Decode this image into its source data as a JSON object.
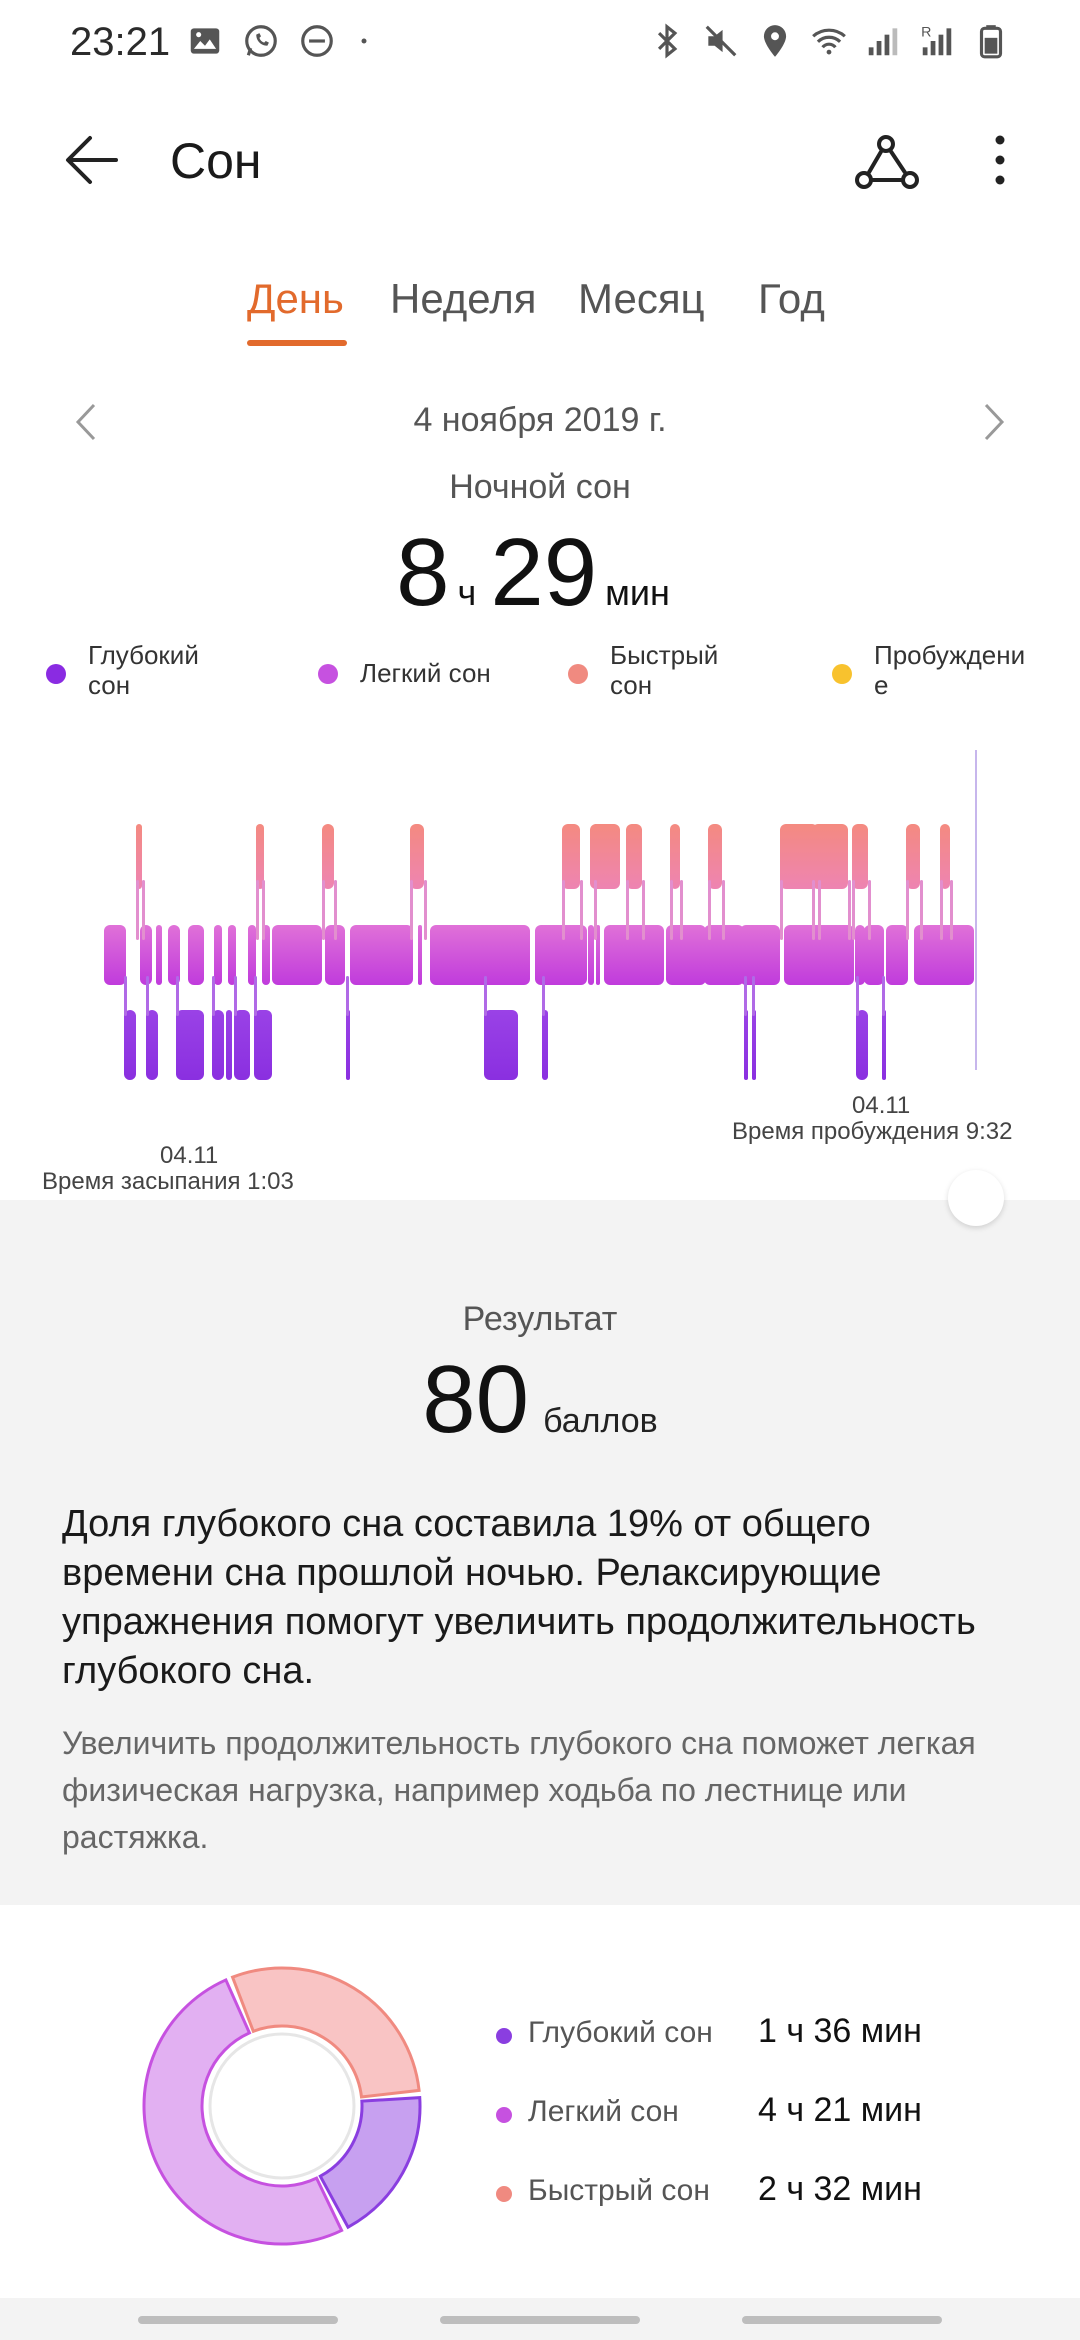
{
  "status_bar": {
    "time": "23:21",
    "left_icons": [
      "image-icon",
      "whatsapp-icon",
      "dnd-icon",
      "dot-icon"
    ],
    "right_icons": [
      "bluetooth-icon",
      "mute-icon",
      "location-icon",
      "wifi-icon",
      "signal-icon",
      "signal-r-icon",
      "battery-icon"
    ]
  },
  "app_bar": {
    "title": "Сон",
    "back_icon": "arrow-left-icon",
    "share_icon": "share-icon",
    "more_icon": "more-vertical-icon"
  },
  "tabs": [
    {
      "label": "День",
      "active": true
    },
    {
      "label": "Неделя",
      "active": false
    },
    {
      "label": "Месяц",
      "active": false
    },
    {
      "label": "Год",
      "active": false
    }
  ],
  "date_nav": {
    "date": "4 ноября 2019 г.",
    "prev_icon": "chevron-left-icon",
    "next_icon": "chevron-right-icon"
  },
  "summary": {
    "label": "Ночной сон",
    "hours": "8",
    "hours_unit": "ч",
    "minutes": "29",
    "minutes_unit": "мин"
  },
  "legend": [
    {
      "label_line1": "Глубокий",
      "label_line2": "сон",
      "color": "#8a2be2"
    },
    {
      "label_line1": "Легкий сон",
      "label_line2": "",
      "color": "#c651e0"
    },
    {
      "label_line1": "Быстрый",
      "label_line2": "сон",
      "color": "#f08a80"
    },
    {
      "label_line1": "Пробуждени",
      "label_line2": "е",
      "color": "#f8c22e"
    }
  ],
  "chart": {
    "start_date": "04.11",
    "start_label": "Время засыпания 1:03",
    "end_date": "04.11",
    "end_label": "Время пробуждения 9:32"
  },
  "result": {
    "label": "Результат",
    "score": "80",
    "unit": "баллов",
    "advice_main": "Доля глубокого сна составила 19% от общего времени сна прошлой ночью. Релаксирующие упражнения помогут увеличить продолжительность глубокого сна.",
    "advice_sub": "Увеличить продолжительность глубокого сна поможет легкая физическая нагрузка, например ходьба по лестнице или растяжка."
  },
  "breakdown": [
    {
      "label": "Глубокий сон",
      "value": "1 ч 36 мин",
      "color": "#8a3ee0"
    },
    {
      "label": "Легкий сон",
      "value": "4 ч 21 мин",
      "color": "#c651e0"
    },
    {
      "label": "Быстрый сон",
      "value": "2 ч 32 мин",
      "color": "#f08a80"
    }
  ]
}
